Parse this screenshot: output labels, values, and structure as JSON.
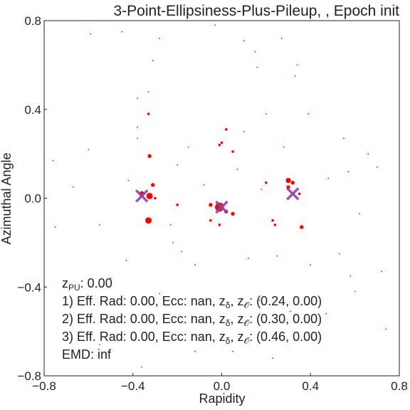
{
  "chart_data": {
    "type": "scatter",
    "title": "3-Point-Ellipsiness-Plus-Pileup, , Epoch init",
    "xlabel": "Rapidity",
    "ylabel": "Azimuthal Angle",
    "xlim": [
      -0.8,
      0.8
    ],
    "ylim": [
      -0.8,
      0.8
    ],
    "xticks": [
      -0.8,
      -0.4,
      0.0,
      0.4,
      0.8
    ],
    "yticks": [
      -0.8,
      -0.4,
      0.0,
      0.4,
      0.8
    ],
    "xtick_labels": [
      "−0.8",
      "−0.4",
      "0.0",
      "0.4",
      "0.8"
    ],
    "ytick_labels": [
      "−0.8",
      "−0.4",
      "0.0",
      "0.4",
      "0.8"
    ],
    "grid": false,
    "colors": {
      "particles": "#ff0000",
      "centers": "#8e44ad",
      "axes": "#222222"
    },
    "series": [
      {
        "marker": "dot",
        "points": [
          [
            -0.01,
            -0.04,
            7
          ],
          [
            -0.33,
            -0.1,
            5
          ],
          [
            -0.325,
            0.19,
            3
          ],
          [
            -0.325,
            0.01,
            5
          ],
          [
            -0.36,
            0.02,
            4
          ],
          [
            -0.31,
            0.06,
            3
          ],
          [
            0.3,
            0.08,
            4
          ],
          [
            0.32,
            0.07,
            3
          ],
          [
            0.3,
            0.05,
            3
          ],
          [
            -0.05,
            -0.03,
            3
          ],
          [
            0.02,
            -0.06,
            3
          ],
          [
            0.05,
            -0.07,
            3
          ],
          [
            0.36,
            -0.13,
            3
          ],
          [
            0.24,
            -0.12,
            2
          ],
          [
            0.23,
            -0.1,
            2
          ],
          [
            -0.05,
            -0.1,
            2
          ],
          [
            -0.01,
            -0.12,
            2
          ],
          [
            0.02,
            0.31,
            2
          ],
          [
            -0.01,
            0.24,
            2
          ],
          [
            -0.3,
            0.0,
            2
          ],
          [
            -0.2,
            -0.03,
            2
          ],
          [
            0.05,
            0.21,
            2
          ],
          [
            0.2,
            0.07,
            2
          ],
          [
            0.35,
            0.02,
            2
          ],
          [
            -0.33,
            0.38,
            2
          ],
          [
            0.0,
            0.25,
            2
          ],
          [
            -0.45,
            0.75,
            1
          ],
          [
            -0.28,
            0.72,
            1
          ],
          [
            -0.03,
            0.78,
            1
          ],
          [
            0.1,
            0.71,
            1
          ],
          [
            0.27,
            0.72,
            1
          ],
          [
            0.34,
            0.6,
            1
          ],
          [
            -0.31,
            0.62,
            1
          ],
          [
            -0.38,
            0.45,
            1
          ],
          [
            0.33,
            0.55,
            1
          ],
          [
            0.15,
            0.66,
            1
          ],
          [
            0.1,
            0.3,
            1
          ],
          [
            0.28,
            0.23,
            1
          ],
          [
            -0.15,
            0.23,
            1
          ],
          [
            -0.08,
            0.06,
            1
          ],
          [
            0.18,
            0.04,
            1
          ],
          [
            0.48,
            0.09,
            1
          ],
          [
            0.57,
            0.12,
            1
          ],
          [
            -0.67,
            0.05,
            1
          ],
          [
            -0.55,
            -0.12,
            1
          ],
          [
            -0.43,
            -0.28,
            1
          ],
          [
            -0.18,
            -0.24,
            1
          ],
          [
            -0.12,
            -0.3,
            1
          ],
          [
            0.12,
            -0.27,
            1
          ],
          [
            0.25,
            -0.26,
            1
          ],
          [
            0.4,
            -0.3,
            1
          ],
          [
            0.58,
            -0.35,
            1
          ],
          [
            0.6,
            -0.42,
            1
          ],
          [
            0.72,
            -0.33,
            1
          ],
          [
            0.74,
            -0.59,
            1
          ],
          [
            -0.12,
            -0.69,
            1
          ],
          [
            0.05,
            -0.69,
            1
          ],
          [
            0.23,
            -0.72,
            1
          ],
          [
            -0.55,
            -0.66,
            1
          ],
          [
            -0.36,
            -0.76,
            1
          ],
          [
            -0.38,
            0.27,
            1
          ],
          [
            0.55,
            0.27,
            1
          ],
          [
            0.66,
            0.2,
            1
          ],
          [
            -0.76,
            0.17,
            1
          ],
          [
            -0.2,
            0.15,
            1
          ],
          [
            0.07,
            0.13,
            1
          ],
          [
            -0.23,
            -0.12,
            1
          ],
          [
            0.53,
            -0.25,
            1
          ],
          [
            -0.33,
            0.48,
            1
          ],
          [
            0.39,
            0.38,
            1
          ],
          [
            -0.59,
            0.74,
            1
          ],
          [
            0.16,
            0.59,
            1
          ],
          [
            -0.38,
            0.32,
            1
          ],
          [
            -0.42,
            0.08,
            1
          ],
          [
            0.62,
            -0.07,
            1
          ],
          [
            -0.75,
            -0.13,
            1
          ],
          [
            -0.5,
            -0.36,
            1
          ],
          [
            -0.28,
            -0.43,
            1
          ],
          [
            0.17,
            -0.46,
            1
          ],
          [
            0.47,
            -0.52,
            1
          ],
          [
            -0.05,
            -0.56,
            1
          ],
          [
            0.31,
            -0.51,
            1
          ],
          [
            0.2,
            0.38,
            1
          ],
          [
            -0.6,
            0.22,
            1
          ],
          [
            0.7,
            0.14,
            1
          ],
          [
            -0.22,
            -0.2,
            1
          ]
        ]
      },
      {
        "marker": "x",
        "points": [
          [
            -0.36,
            0.01
          ],
          [
            0.0,
            -0.04
          ],
          [
            0.32,
            0.02
          ]
        ]
      }
    ],
    "annotations": [
      {
        "pre": "z",
        "sub": "PU",
        "post": ": 0.00"
      },
      {
        "pre": "1) Eff. Rad: 0.00, Ecc: nan, z",
        "sub": "δ",
        "mid": ", z",
        "sub2": "𝒪",
        "post": ": (0.24, 0.00)"
      },
      {
        "pre": "2) Eff. Rad: 0.00, Ecc: nan, z",
        "sub": "δ",
        "mid": ", z",
        "sub2": "𝒪",
        "post": ": (0.30, 0.00)"
      },
      {
        "pre": "3) Eff. Rad: 0.00, Ecc: nan, z",
        "sub": "δ",
        "mid": ", z",
        "sub2": "𝒪",
        "post": ": (0.46, 0.00)"
      },
      {
        "pre": "EMD: inf"
      }
    ]
  }
}
